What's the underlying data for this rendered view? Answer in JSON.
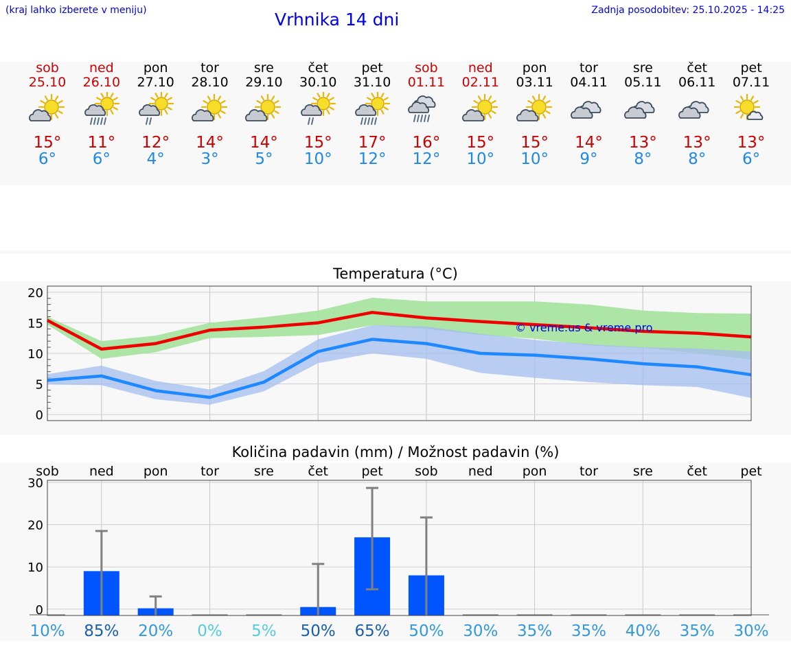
{
  "header": {
    "hint": "(kraj lahko izberete v meniju)",
    "title": "Vrhnika 14 dni",
    "updated": "Zadnja posodobitev: 25.10.2025 - 14:25"
  },
  "days": [
    {
      "name": "sob",
      "date": "25.10",
      "weekend": true,
      "icon": "sun-cloud-icon",
      "tmax": "15°",
      "tmin": "6°"
    },
    {
      "name": "ned",
      "date": "26.10",
      "weekend": true,
      "icon": "sun-cloud-rain-icon",
      "tmax": "11°",
      "tmin": "6°"
    },
    {
      "name": "pon",
      "date": "27.10",
      "weekend": false,
      "icon": "sun-cloud-drizzle-icon",
      "tmax": "12°",
      "tmin": "4°"
    },
    {
      "name": "tor",
      "date": "28.10",
      "weekend": false,
      "icon": "sun-cloud-icon",
      "tmax": "14°",
      "tmin": "3°"
    },
    {
      "name": "sre",
      "date": "29.10",
      "weekend": false,
      "icon": "sun-cloud-icon",
      "tmax": "14°",
      "tmin": "5°"
    },
    {
      "name": "čet",
      "date": "30.10",
      "weekend": false,
      "icon": "sun-cloud-drizzle-icon",
      "tmax": "15°",
      "tmin": "10°"
    },
    {
      "name": "pet",
      "date": "31.10",
      "weekend": false,
      "icon": "sun-cloud-rain-icon",
      "tmax": "17°",
      "tmin": "12°"
    },
    {
      "name": "sob",
      "date": "01.11",
      "weekend": true,
      "icon": "cloud-rain-icon",
      "tmax": "16°",
      "tmin": "12°"
    },
    {
      "name": "ned",
      "date": "02.11",
      "weekend": true,
      "icon": "sun-cloud-icon",
      "tmax": "15°",
      "tmin": "10°"
    },
    {
      "name": "pon",
      "date": "03.11",
      "weekend": false,
      "icon": "sun-cloud-icon",
      "tmax": "15°",
      "tmin": "10°"
    },
    {
      "name": "tor",
      "date": "04.11",
      "weekend": false,
      "icon": "cloudy-icon",
      "tmax": "14°",
      "tmin": "9°"
    },
    {
      "name": "sre",
      "date": "05.11",
      "weekend": false,
      "icon": "cloudy-icon",
      "tmax": "13°",
      "tmin": "8°"
    },
    {
      "name": "čet",
      "date": "06.11",
      "weekend": false,
      "icon": "cloudy-icon",
      "tmax": "13°",
      "tmin": "8°"
    },
    {
      "name": "pet",
      "date": "07.11",
      "weekend": false,
      "icon": "sun-small-cloud-icon",
      "tmax": "13°",
      "tmin": "6°"
    }
  ],
  "colors": {
    "link": "#0000ee",
    "weekend": "#cc0000",
    "tmax": "#cc0000",
    "tmin": "#1e88e5",
    "max_line": "#ee0000",
    "max_band": "#a8e4a0",
    "min_line": "#1e88ff",
    "min_band": "#a6bff0",
    "bar": "#0055ff",
    "whisker": "#808080"
  },
  "chart_data": [
    {
      "type": "line",
      "title": "Temperatura (°C)",
      "watermark": "© vreme.us & vreme.pro",
      "ylim": [
        -1,
        21
      ],
      "yticks": [
        0,
        5,
        10,
        15,
        20
      ],
      "x": [
        0,
        1,
        2,
        3,
        4,
        5,
        6,
        7,
        8,
        9,
        10,
        11,
        12,
        13
      ],
      "series": [
        {
          "name": "max",
          "values": [
            15.4,
            10.7,
            11.6,
            13.8,
            14.3,
            15.0,
            16.7,
            15.8,
            15.2,
            14.7,
            14.2,
            13.6,
            13.3,
            12.7
          ],
          "band_low": [
            14.7,
            9.1,
            10.2,
            12.5,
            12.7,
            13.0,
            14.6,
            14.0,
            13.0,
            12.4,
            11.3,
            10.9,
            10.0,
            9.0
          ],
          "band_high": [
            16.0,
            12.0,
            12.9,
            15.0,
            15.9,
            17.0,
            19.1,
            18.5,
            18.5,
            18.5,
            18.0,
            17.0,
            16.6,
            16.5
          ]
        },
        {
          "name": "min",
          "values": [
            5.6,
            6.3,
            3.9,
            2.8,
            5.3,
            10.3,
            12.3,
            11.6,
            10.0,
            9.7,
            9.1,
            8.3,
            7.8,
            6.5
          ],
          "band_low": [
            4.9,
            4.8,
            2.5,
            1.6,
            3.8,
            8.4,
            10.0,
            9.1,
            6.8,
            6.0,
            5.3,
            4.8,
            4.5,
            2.7
          ],
          "band_high": [
            6.6,
            8.0,
            5.5,
            4.1,
            7.1,
            12.3,
            14.6,
            14.4,
            13.2,
            12.2,
            11.5,
            11.0,
            10.8,
            10.3
          ]
        }
      ]
    },
    {
      "type": "bar",
      "title": "Količina padavin (mm) / Možnost padavin (%)",
      "categories": [
        "sob",
        "ned",
        "pon",
        "tor",
        "sre",
        "čet",
        "pet",
        "sob",
        "ned",
        "pon",
        "tor",
        "sre",
        "čet",
        "pet"
      ],
      "ylim": [
        -1.5,
        30.5
      ],
      "yticks": [
        0,
        10,
        20,
        30
      ],
      "values": [
        0,
        9.0,
        0.2,
        0,
        0,
        0.5,
        17.0,
        8.0,
        0,
        0,
        0,
        0,
        0,
        0
      ],
      "whisker_low": [
        0,
        0,
        0,
        0,
        0,
        0,
        4.7,
        0,
        0,
        0,
        0,
        0,
        0,
        0
      ],
      "whisker_high": [
        0,
        18.5,
        3.0,
        0,
        0,
        10.7,
        28.7,
        21.7,
        0,
        0,
        0,
        0,
        0,
        0
      ],
      "probability": [
        "10%",
        "85%",
        "20%",
        "0%",
        "5%",
        "50%",
        "65%",
        "50%",
        "30%",
        "35%",
        "35%",
        "40%",
        "35%",
        "30%"
      ],
      "probability_colors": [
        "#3399dd",
        "#1a5fa8",
        "#3399dd",
        "#55ccdd",
        "#55ccdd",
        "#1a5fa8",
        "#1a5fa8",
        "#3399dd",
        "#3399dd",
        "#3399dd",
        "#3399dd",
        "#3399dd",
        "#3399dd",
        "#3399dd"
      ]
    }
  ]
}
